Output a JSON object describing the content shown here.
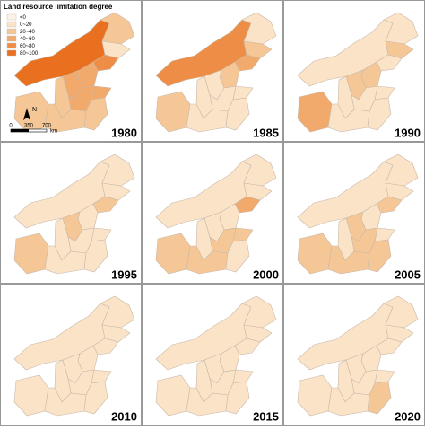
{
  "legend": {
    "title": "Land resource limitation degree",
    "items": [
      {
        "label": "<0",
        "color": "#fdf2e6"
      },
      {
        "label": "0~20",
        "color": "#fbe3c8"
      },
      {
        "label": "20~40",
        "color": "#f6c796"
      },
      {
        "label": "40~60",
        "color": "#f2aa6c"
      },
      {
        "label": "60~80",
        "color": "#ee8e46"
      },
      {
        "label": "80~100",
        "color": "#e8701f"
      }
    ]
  },
  "north": "N",
  "scale_bar": {
    "ticks": [
      "0",
      "350",
      "700"
    ],
    "unit": "km"
  },
  "panels": [
    {
      "year": "1980",
      "levels": [
        5,
        2,
        1,
        4,
        3,
        3,
        3,
        3,
        2,
        2,
        2,
        2
      ]
    },
    {
      "year": "1985",
      "levels": [
        4,
        1,
        2,
        3,
        2,
        1,
        1,
        1,
        1,
        2,
        1,
        1
      ]
    },
    {
      "year": "1990",
      "levels": [
        1,
        1,
        2,
        1,
        2,
        2,
        1,
        1,
        1,
        3,
        1,
        1
      ]
    },
    {
      "year": "1995",
      "levels": [
        1,
        1,
        1,
        2,
        1,
        2,
        1,
        1,
        1,
        2,
        1,
        1
      ]
    },
    {
      "year": "2000",
      "levels": [
        1,
        1,
        1,
        3,
        1,
        1,
        2,
        2,
        1,
        2,
        2,
        1
      ]
    },
    {
      "year": "2005",
      "levels": [
        1,
        1,
        1,
        2,
        1,
        2,
        1,
        2,
        1,
        2,
        2,
        2
      ]
    },
    {
      "year": "2010",
      "levels": [
        1,
        1,
        1,
        1,
        1,
        1,
        1,
        1,
        1,
        1,
        1,
        1
      ]
    },
    {
      "year": "2015",
      "levels": [
        1,
        1,
        1,
        1,
        1,
        1,
        1,
        1,
        1,
        1,
        1,
        1
      ]
    },
    {
      "year": "2020",
      "levels": [
        1,
        1,
        1,
        1,
        1,
        1,
        1,
        1,
        1,
        1,
        1,
        2
      ]
    }
  ]
}
